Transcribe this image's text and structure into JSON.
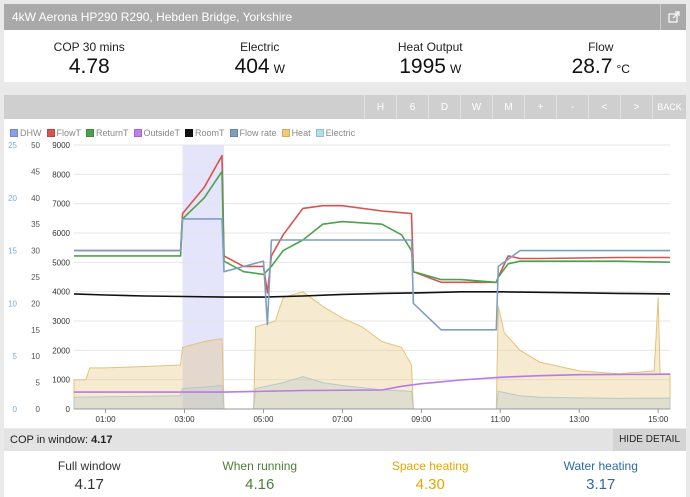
{
  "title": "4kW Aerona HP290 R290, Hebden Bridge, Yorkshire",
  "stats": [
    {
      "label": "COP 30 mins",
      "value": "4.78",
      "unit": ""
    },
    {
      "label": "Electric",
      "value": "404",
      "unit": "W"
    },
    {
      "label": "Heat Output",
      "value": "1995",
      "unit": "W"
    },
    {
      "label": "Flow",
      "value": "28.7",
      "unit": "°C"
    }
  ],
  "toolbar": [
    "H",
    "6",
    "D",
    "W",
    "M",
    "+",
    "-",
    "<",
    ">",
    "BACK"
  ],
  "legend": [
    {
      "name": "DHW",
      "color": "#8aa0ea"
    },
    {
      "name": "FlowT",
      "color": "#d9534f"
    },
    {
      "name": "ReturnT",
      "color": "#4aa34a"
    },
    {
      "name": "OutsideT",
      "color": "#c17cf2"
    },
    {
      "name": "RoomT",
      "color": "#111111"
    },
    {
      "name": "Flow rate",
      "color": "#7f9fbf"
    },
    {
      "name": "Heat",
      "color": "#f5c978"
    },
    {
      "name": "Electric",
      "color": "#aee0f2"
    }
  ],
  "chart_data": {
    "type": "line",
    "xlabel": "",
    "x_ticks": [
      "01:00",
      "03:00",
      "05:00",
      "07:00",
      "09:00",
      "11:00",
      "13:00",
      "15:00"
    ],
    "x_hours": [
      1,
      3,
      5,
      7,
      9,
      11,
      13,
      15
    ],
    "xlim": [
      0.2,
      15.3
    ],
    "axis_flow": {
      "ticks": [
        "25",
        "20",
        "15",
        "10",
        "5",
        "0"
      ],
      "range": [
        0,
        25
      ],
      "color": "#6fb1e3"
    },
    "axis_temp": {
      "ticks": [
        "50",
        "45",
        "40",
        "35",
        "30",
        "25",
        "20",
        "15",
        "10",
        "5",
        "0"
      ],
      "range": [
        0,
        50
      ]
    },
    "axis_power": {
      "ticks": [
        "9000",
        "8000",
        "7000",
        "6000",
        "5000",
        "4000",
        "3000",
        "2000",
        "1000",
        "0"
      ],
      "range": [
        0,
        9000
      ]
    },
    "dhw_window": [
      2.95,
      4.0
    ],
    "series": [
      {
        "name": "Heat",
        "axis": "power",
        "style": "area",
        "color": "#e6c27a",
        "points": [
          [
            0.2,
            1000
          ],
          [
            0.5,
            1000
          ],
          [
            0.6,
            1400
          ],
          [
            1,
            1400
          ],
          [
            2,
            1450
          ],
          [
            2.9,
            1500
          ],
          [
            2.95,
            2100
          ],
          [
            3.5,
            2300
          ],
          [
            3.95,
            2400
          ],
          [
            4.0,
            0
          ],
          [
            4.75,
            0
          ],
          [
            4.8,
            2800
          ],
          [
            5.3,
            3000
          ],
          [
            5.5,
            3800
          ],
          [
            6,
            4000
          ],
          [
            6.5,
            3500
          ],
          [
            7,
            3100
          ],
          [
            7.5,
            2800
          ],
          [
            8,
            2300
          ],
          [
            8.5,
            2100
          ],
          [
            8.75,
            1500
          ],
          [
            8.8,
            0
          ],
          [
            10.9,
            0
          ],
          [
            10.95,
            3500
          ],
          [
            11.1,
            2600
          ],
          [
            11.5,
            2000
          ],
          [
            12,
            1600
          ],
          [
            13,
            1300
          ],
          [
            14,
            1200
          ],
          [
            14.9,
            1300
          ],
          [
            15.0,
            3800
          ],
          [
            15.05,
            1200
          ],
          [
            15.3,
            1200
          ]
        ]
      },
      {
        "name": "Electric",
        "axis": "power",
        "style": "area",
        "color": "#b7c9c9",
        "points": [
          [
            0.2,
            400
          ],
          [
            1,
            420
          ],
          [
            2,
            430
          ],
          [
            2.9,
            450
          ],
          [
            2.95,
            700
          ],
          [
            3.5,
            750
          ],
          [
            3.95,
            800
          ],
          [
            4.0,
            0
          ],
          [
            4.75,
            0
          ],
          [
            4.8,
            700
          ],
          [
            5.5,
            900
          ],
          [
            6,
            1100
          ],
          [
            6.5,
            900
          ],
          [
            7,
            800
          ],
          [
            8,
            650
          ],
          [
            8.75,
            600
          ],
          [
            8.8,
            0
          ],
          [
            10.9,
            0
          ],
          [
            10.95,
            600
          ],
          [
            11.5,
            450
          ],
          [
            12,
            400
          ],
          [
            13,
            380
          ],
          [
            14,
            360
          ],
          [
            15.3,
            370
          ]
        ]
      },
      {
        "name": "FlowT",
        "axis": "temp",
        "style": "line",
        "color": "#d9534f",
        "points": [
          [
            0.2,
            30
          ],
          [
            1,
            30
          ],
          [
            2,
            30
          ],
          [
            2.9,
            30
          ],
          [
            2.95,
            37
          ],
          [
            3.5,
            42
          ],
          [
            3.95,
            48
          ],
          [
            4.0,
            29
          ],
          [
            4.5,
            27
          ],
          [
            5,
            27
          ],
          [
            5.1,
            22
          ],
          [
            5.2,
            29
          ],
          [
            5.5,
            33
          ],
          [
            6,
            38
          ],
          [
            6.5,
            38.5
          ],
          [
            7,
            38.5
          ],
          [
            8,
            37.5
          ],
          [
            8.75,
            37
          ],
          [
            8.8,
            26
          ],
          [
            9.5,
            24
          ],
          [
            10,
            24
          ],
          [
            10.9,
            24
          ],
          [
            10.95,
            25
          ],
          [
            11.2,
            29
          ],
          [
            11.5,
            28.5
          ],
          [
            12,
            28.5
          ],
          [
            13,
            28.6
          ],
          [
            14,
            28.7
          ],
          [
            15.3,
            28.7
          ]
        ]
      },
      {
        "name": "ReturnT",
        "axis": "temp",
        "style": "line",
        "color": "#4aa34a",
        "points": [
          [
            0.2,
            29
          ],
          [
            1,
            29
          ],
          [
            2,
            29
          ],
          [
            2.9,
            29
          ],
          [
            2.95,
            36
          ],
          [
            3.5,
            40
          ],
          [
            3.95,
            45
          ],
          [
            4.0,
            28
          ],
          [
            4.5,
            26
          ],
          [
            5,
            25.5
          ],
          [
            5.2,
            27
          ],
          [
            5.5,
            30
          ],
          [
            6,
            32
          ],
          [
            6.5,
            35
          ],
          [
            7,
            35.5
          ],
          [
            8,
            35
          ],
          [
            8.5,
            33
          ],
          [
            8.75,
            30
          ],
          [
            8.8,
            26
          ],
          [
            9.5,
            24.5
          ],
          [
            10,
            24.5
          ],
          [
            10.9,
            24
          ],
          [
            10.95,
            25
          ],
          [
            11.2,
            27.5
          ],
          [
            11.5,
            28
          ],
          [
            12,
            28
          ],
          [
            13,
            28
          ],
          [
            14,
            28
          ],
          [
            15.3,
            27.8
          ]
        ]
      },
      {
        "name": "OutsideT",
        "axis": "temp",
        "style": "line",
        "color": "#b57be8",
        "points": [
          [
            0.2,
            3.2
          ],
          [
            2,
            3.2
          ],
          [
            4,
            3.2
          ],
          [
            6,
            3.5
          ],
          [
            8,
            3.6
          ],
          [
            8.5,
            4.3
          ],
          [
            9,
            4.8
          ],
          [
            10,
            5.5
          ],
          [
            11,
            6
          ],
          [
            12,
            6.3
          ],
          [
            13,
            6.5
          ],
          [
            15.3,
            6.6
          ]
        ]
      },
      {
        "name": "RoomT",
        "axis": "temp",
        "style": "line",
        "color": "#111111",
        "points": [
          [
            0.2,
            21.8
          ],
          [
            1,
            21.6
          ],
          [
            2,
            21.4
          ],
          [
            3,
            21.3
          ],
          [
            4,
            21.2
          ],
          [
            5,
            21.2
          ],
          [
            6,
            21.4
          ],
          [
            7,
            21.7
          ],
          [
            8,
            21.9
          ],
          [
            9,
            22
          ],
          [
            10,
            22.2
          ],
          [
            11,
            22.2
          ],
          [
            12,
            22.1
          ],
          [
            13,
            22
          ],
          [
            14,
            21.9
          ],
          [
            15.3,
            21.8
          ]
        ]
      },
      {
        "name": "Flow rate",
        "axis": "flow",
        "style": "line",
        "color": "#7f9fbf",
        "points": [
          [
            0.2,
            15
          ],
          [
            1,
            15
          ],
          [
            2,
            15
          ],
          [
            2.9,
            15
          ],
          [
            2.95,
            18
          ],
          [
            3.5,
            18
          ],
          [
            3.95,
            18
          ],
          [
            4.0,
            13
          ],
          [
            4.5,
            13.5
          ],
          [
            5,
            14
          ],
          [
            5.1,
            8
          ],
          [
            5.2,
            16
          ],
          [
            5.5,
            16
          ],
          [
            6,
            16
          ],
          [
            7,
            16
          ],
          [
            8,
            16
          ],
          [
            8.75,
            16
          ],
          [
            8.8,
            10
          ],
          [
            9.5,
            7.5
          ],
          [
            10,
            7.5
          ],
          [
            10.9,
            7.5
          ],
          [
            10.95,
            13.5
          ],
          [
            11.5,
            15
          ],
          [
            12,
            15
          ],
          [
            13,
            15
          ],
          [
            14,
            15
          ],
          [
            15.3,
            15
          ]
        ]
      }
    ]
  },
  "cop_window": {
    "label": "COP in window:",
    "value": "4.17",
    "hide_label": "HIDE DETAIL"
  },
  "summary": [
    {
      "label": "Full window",
      "value": "4.17",
      "color": "#333333"
    },
    {
      "label": "When running",
      "value": "4.16",
      "color": "#4a7f3a"
    },
    {
      "label": "Space heating",
      "value": "4.30",
      "color": "#e6a500"
    },
    {
      "label": "Water heating",
      "value": "3.17",
      "color": "#2d6aa3"
    }
  ]
}
